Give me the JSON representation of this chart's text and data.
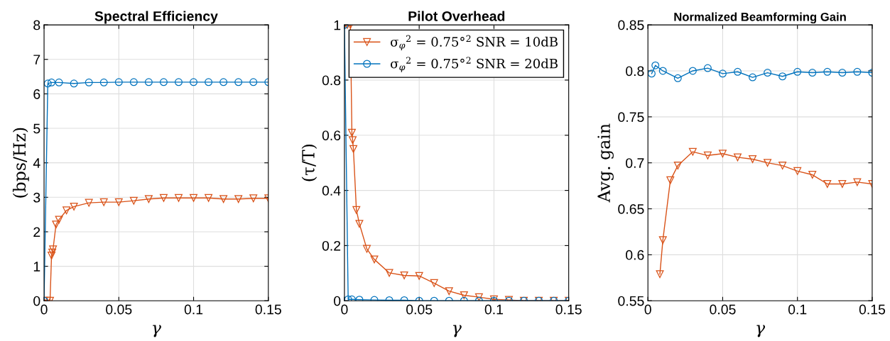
{
  "chart_data": [
    {
      "type": "line",
      "title": "Spectral Efficiency",
      "xlabel": "γ",
      "ylabel": "(bps/Hz)",
      "xlim": [
        0,
        0.15
      ],
      "xticks": [
        0,
        0.05,
        0.1,
        0.15
      ],
      "ylim": [
        0,
        8
      ],
      "yticks": [
        0,
        1,
        2,
        3,
        4,
        5,
        6,
        7,
        8
      ],
      "grid": true,
      "legend": false,
      "series": [
        {
          "color": "#d95319",
          "marker": "triangle",
          "x": [
            0,
            0.002,
            0.004,
            0.005,
            0.0055,
            0.006,
            0.008,
            0.01,
            0.015,
            0.02,
            0.03,
            0.04,
            0.05,
            0.06,
            0.07,
            0.08,
            0.09,
            0.1,
            0.11,
            0.12,
            0.13,
            0.14,
            0.15
          ],
          "values": [
            0,
            0,
            0,
            1.31,
            1.4,
            1.49,
            2.21,
            2.35,
            2.62,
            2.73,
            2.84,
            2.86,
            2.86,
            2.9,
            2.95,
            2.98,
            2.98,
            2.98,
            2.98,
            2.95,
            2.95,
            2.97,
            2.97
          ]
        },
        {
          "color": "#0072bd",
          "marker": "circle",
          "x": [
            0,
            0.0025,
            0.005,
            0.01,
            0.02,
            0.03,
            0.04,
            0.05,
            0.06,
            0.07,
            0.08,
            0.09,
            0.1,
            0.11,
            0.12,
            0.13,
            0.14,
            0.15
          ],
          "values": [
            0,
            6.3,
            6.33,
            6.33,
            6.3,
            6.33,
            6.33,
            6.34,
            6.34,
            6.34,
            6.34,
            6.34,
            6.34,
            6.34,
            6.34,
            6.34,
            6.34,
            6.34
          ]
        }
      ]
    },
    {
      "type": "line",
      "title": "Pilot Overhead",
      "xlabel": "γ",
      "ylabel": "(τ/T)",
      "xlim": [
        0,
        0.15
      ],
      "xticks": [
        0,
        0.05,
        0.1,
        0.15
      ],
      "ylim": [
        0,
        1
      ],
      "yticks": [
        0,
        0.2,
        0.4,
        0.6,
        0.8,
        1
      ],
      "grid": true,
      "legend": "top right",
      "series": [
        {
          "name": "σ$_{φ}$$^{2}$ = 0.75°$^{2}$ SNR = 10dB",
          "color": "#d95319",
          "marker": "triangle",
          "x": [
            0,
            0.002,
            0.004,
            0.005,
            0.0055,
            0.006,
            0.008,
            0.01,
            0.015,
            0.02,
            0.03,
            0.04,
            0.05,
            0.06,
            0.07,
            0.08,
            0.09,
            0.1,
            0.11,
            0.12,
            0.13,
            0.14,
            0.15
          ],
          "values": [
            1,
            1,
            1,
            0.609,
            0.582,
            0.55,
            0.329,
            0.279,
            0.188,
            0.15,
            0.101,
            0.092,
            0.09,
            0.064,
            0.035,
            0.02,
            0.013,
            0.005,
            0.003,
            0,
            0,
            0,
            0
          ]
        },
        {
          "name": "σ$_{φ}$$^{2}$ = 0.75°$^{2}$ SNR = 20dB",
          "color": "#0072bd",
          "marker": "circle",
          "x": [
            0,
            0.0025,
            0.005,
            0.01,
            0.02,
            0.03,
            0.04,
            0.05,
            0.06,
            0.07,
            0.08,
            0.09,
            0.1,
            0.11,
            0.12,
            0.13,
            0.14,
            0.15
          ],
          "values": [
            1,
            0.005,
            0.005,
            0.004,
            0.003,
            0.002,
            0.002,
            0,
            0,
            0,
            0,
            0,
            0,
            0,
            0,
            0,
            0,
            0
          ]
        }
      ]
    },
    {
      "type": "line",
      "title": "Normalized Beamforming Gain",
      "xlabel": "γ",
      "ylabel": "Avg. gain",
      "xlim": [
        0,
        0.15
      ],
      "xticks": [
        0,
        0.05,
        0.1,
        0.15
      ],
      "ylim": [
        0.55,
        0.85
      ],
      "yticks": [
        0.55,
        0.6,
        0.65,
        0.7,
        0.75,
        0.8,
        0.85
      ],
      "grid": true,
      "legend": false,
      "series": [
        {
          "color": "#d95319",
          "marker": "triangle",
          "x": [
            0.008,
            0.01,
            0.015,
            0.02,
            0.03,
            0.04,
            0.05,
            0.06,
            0.07,
            0.08,
            0.09,
            0.1,
            0.11,
            0.12,
            0.13,
            0.14,
            0.15
          ],
          "values": [
            0.579,
            0.616,
            0.681,
            0.697,
            0.712,
            0.708,
            0.71,
            0.706,
            0.704,
            0.7,
            0.697,
            0.691,
            0.687,
            0.677,
            0.677,
            0.679,
            0.677
          ]
        },
        {
          "color": "#0072bd",
          "marker": "circle",
          "x": [
            0.0025,
            0.005,
            0.01,
            0.02,
            0.03,
            0.04,
            0.05,
            0.06,
            0.07,
            0.08,
            0.09,
            0.1,
            0.11,
            0.12,
            0.13,
            0.14,
            0.15
          ],
          "values": [
            0.797,
            0.806,
            0.8,
            0.792,
            0.8,
            0.803,
            0.797,
            0.799,
            0.793,
            0.798,
            0.794,
            0.799,
            0.798,
            0.799,
            0.798,
            0.799,
            0.798
          ]
        }
      ]
    }
  ]
}
